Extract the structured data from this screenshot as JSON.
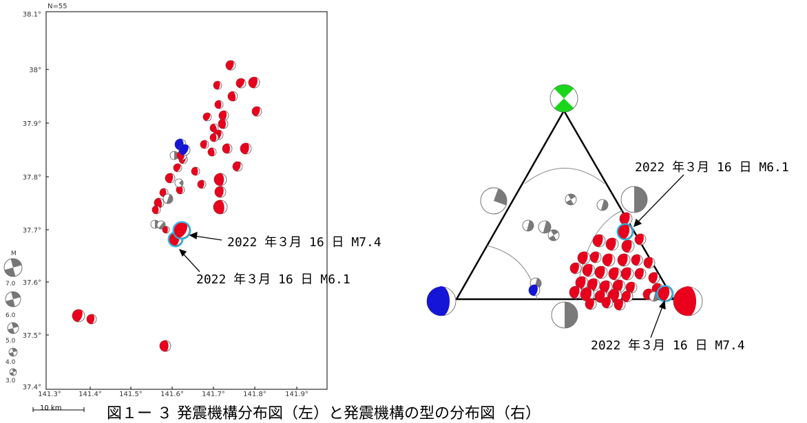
{
  "map": {
    "count_label": "N=55",
    "lat_ticks": [
      "38.1°",
      "38°",
      "37.9°",
      "37.8°",
      "37.7°",
      "37.6°",
      "37.5°",
      "37.4°"
    ],
    "lon_ticks": [
      "141.3°",
      "141.4°",
      "141.5°",
      "141.6°",
      "141.7°",
      "141.8°",
      "141.9°"
    ],
    "annotations": {
      "m74": "2022 年３月 16 日 M7.4",
      "m61": "2022 年３月 16 日 M6.1"
    },
    "scale_text": "10 km"
  },
  "legend": {
    "title": "M",
    "labels": [
      "7.0",
      "6.0",
      "5.0",
      "4.0",
      "3.0"
    ]
  },
  "triangle": {
    "annotations": {
      "m61": "2022 年３月 16 日 M6.1",
      "m74": "2022 年３月 16 日 M7.4"
    }
  },
  "caption": "図１ー ３ 発震機構分布図（左）と発震機構の型の分布図（右）",
  "colors": {
    "reverse": "#e8001c",
    "normal": "#1515d8",
    "strike_slip": "#1ad61a",
    "other": "#7a7a7a",
    "highlight": "#29b6e6"
  }
}
